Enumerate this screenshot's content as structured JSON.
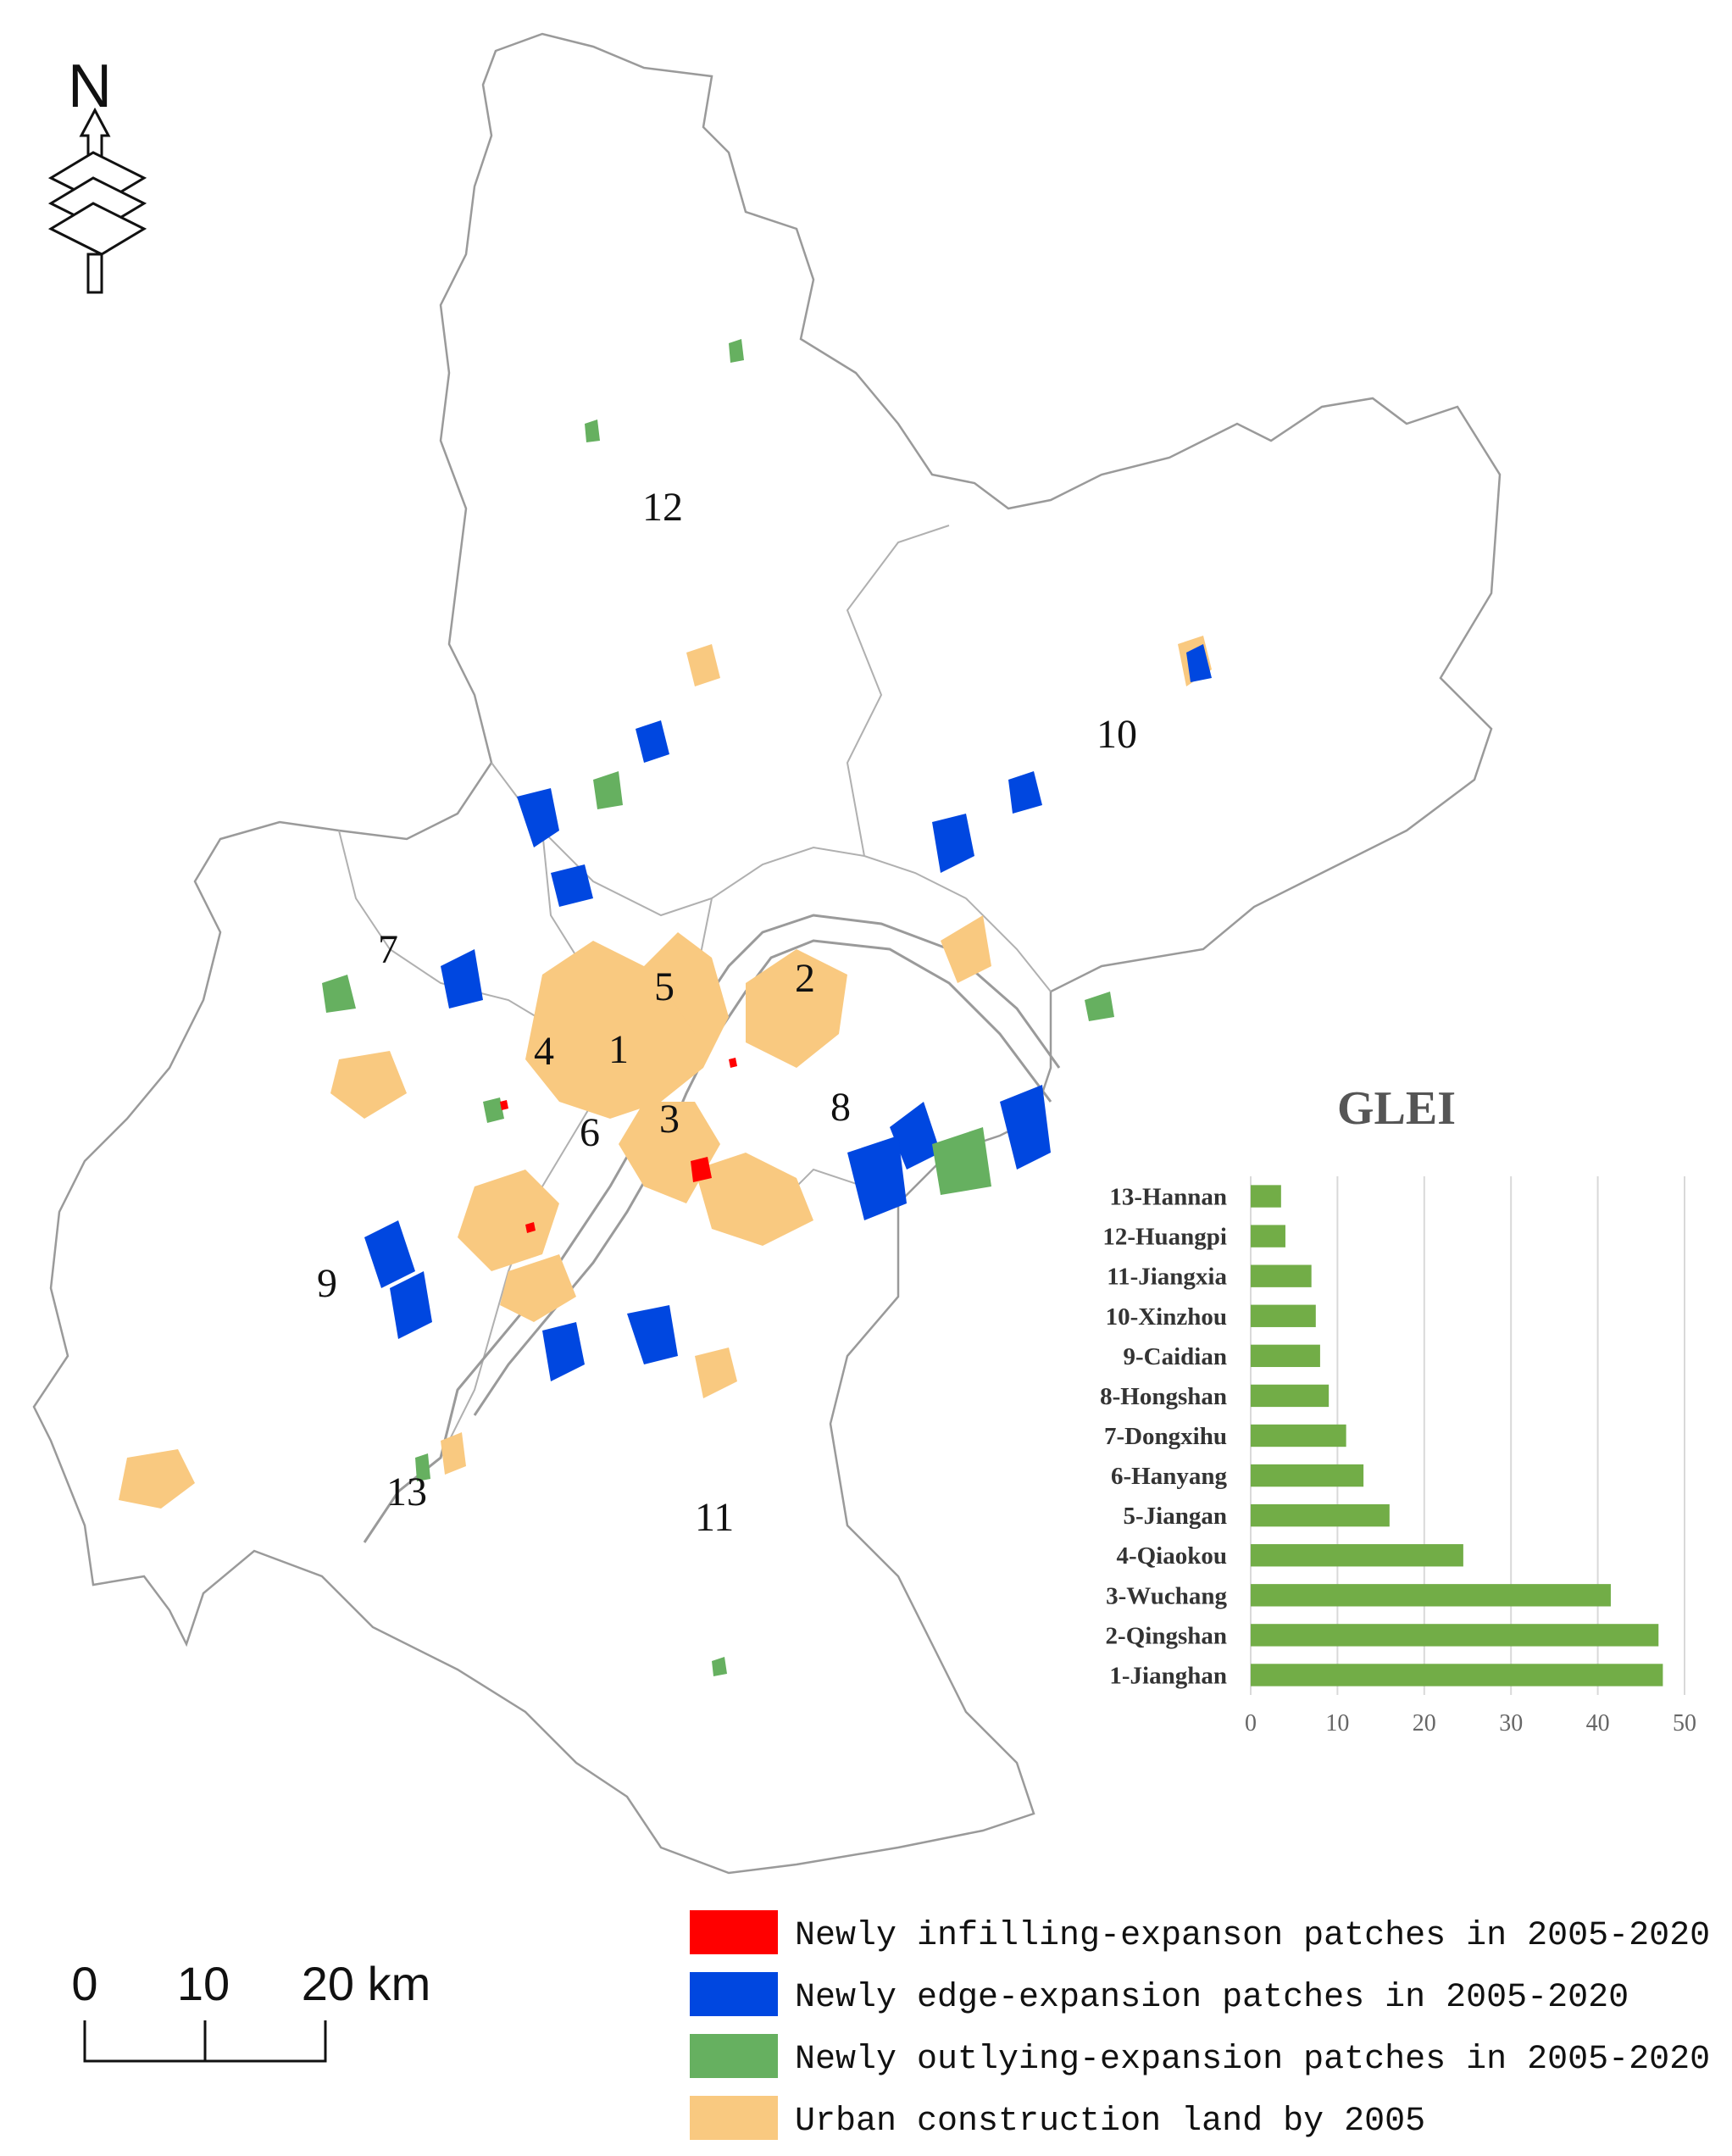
{
  "colors": {
    "infill": "#ff0000",
    "edge": "#0047e0",
    "outlying": "#66b060",
    "urban": "#f9c980",
    "boundary": "#9a9a9a",
    "bar": "#72ad47",
    "grid": "#d9d9d9"
  },
  "north_arrow": {
    "label": "N",
    "icon": "north-arrow-icon"
  },
  "district_numbers": [
    "1",
    "2",
    "3",
    "4",
    "5",
    "6",
    "7",
    "8",
    "9",
    "10",
    "11",
    "12",
    "13"
  ],
  "scale_bar": {
    "labels": [
      "0",
      "10",
      "20 km"
    ]
  },
  "legend": [
    {
      "label": "Newly infilling-expanson patches in 2005-2020",
      "color_key": "infill"
    },
    {
      "label": "Newly edge-expansion patches in 2005-2020",
      "color_key": "edge"
    },
    {
      "label": "Newly outlying-expansion patches in 2005-2020",
      "color_key": "outlying"
    },
    {
      "label": "Urban construction land by 2005",
      "color_key": "urban"
    }
  ],
  "chart_data": {
    "type": "bar",
    "orientation": "horizontal",
    "title": "GLEI",
    "categories": [
      "13-Hannan",
      "12-Huangpi",
      "11-Jiangxia",
      "10-Xinzhou",
      "9-Caidian",
      "8-Hongshan",
      "7-Dongxihu",
      "6-Hanyang",
      "5-Jiangan",
      "4-Qiaokou",
      "3-Wuchang",
      "2-Qingshan",
      "1-Jianghan"
    ],
    "values": [
      3.5,
      4,
      7,
      7.5,
      8,
      9,
      11,
      13,
      16,
      24.5,
      41.5,
      47,
      47.5
    ],
    "xlim": [
      0,
      50
    ],
    "xticks": [
      "0",
      "10",
      "20",
      "30",
      "40",
      "50"
    ],
    "grid": true
  }
}
